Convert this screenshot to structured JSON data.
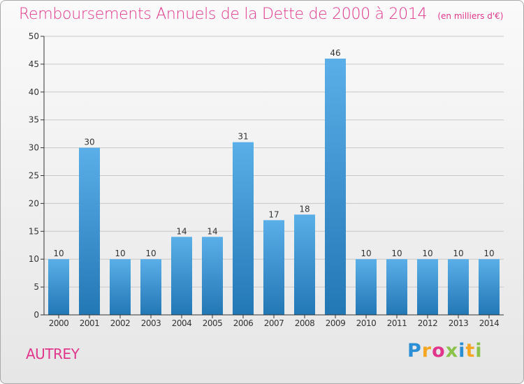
{
  "title": "Remboursements Annuels de la Dette de 2000 à 2014",
  "unit": "(en milliers d'€)",
  "commune": "AUTREY",
  "brand": {
    "name": "Proxiti",
    "letters": [
      "P",
      "r",
      "o",
      "x",
      "i",
      "t",
      "i"
    ],
    "colors": [
      "#2b8fd6",
      "#f5a623",
      "#e0368c",
      "#8bc34a",
      "#2b8fd6",
      "#f5a623",
      "#8bc34a"
    ]
  },
  "colors": {
    "title": "#e0368c",
    "bar_top": "#5aafe8",
    "bar_bottom": "#2277b5",
    "axis": "#333333",
    "grid": "#c8c8c8"
  },
  "chart_data": {
    "type": "bar",
    "title": "Remboursements Annuels de la Dette de 2000 à 2014",
    "ylabel": "",
    "xlabel": "",
    "categories": [
      "2000",
      "2001",
      "2002",
      "2003",
      "2004",
      "2005",
      "2006",
      "2007",
      "2008",
      "2009",
      "2010",
      "2011",
      "2012",
      "2013",
      "2014"
    ],
    "values": [
      10,
      30,
      10,
      10,
      14,
      14,
      31,
      17,
      18,
      46,
      10,
      10,
      10,
      10,
      10
    ],
    "ylim": [
      0,
      50
    ],
    "yticks": [
      0,
      5,
      10,
      15,
      20,
      25,
      30,
      35,
      40,
      45,
      50
    ],
    "grid": true,
    "data_labels": true
  }
}
